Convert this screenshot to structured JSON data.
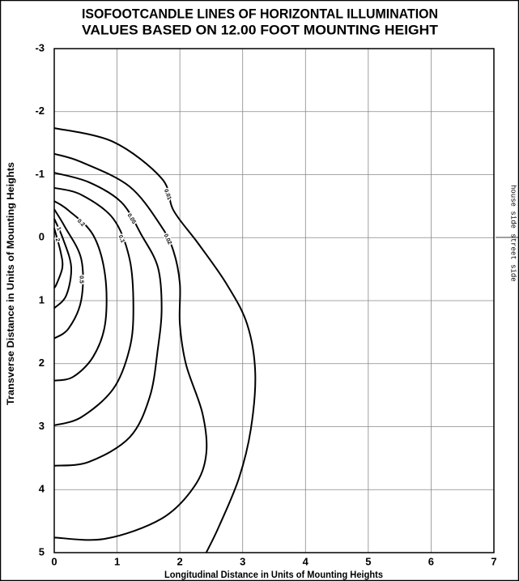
{
  "chart_data": {
    "type": "contour",
    "title": "ISOFOOTCANDLE LINES OF HORIZONTAL ILLUMINATION",
    "subtitle": "VALUES BASED ON 12.00 FOOT MOUNTING HEIGHT",
    "x_label": "Longitudinal Distance in Units of Mounting Heights",
    "y_label": "Transverse Distance in Units of Mounting Heights",
    "annotations": [
      "house side",
      "street side"
    ],
    "xlim": [
      0,
      7
    ],
    "xticks": [
      0,
      1,
      2,
      3,
      4,
      5,
      6,
      7
    ],
    "ylim": [
      -3,
      5
    ],
    "yticks": [
      -3,
      -2,
      -1,
      0,
      1,
      2,
      3,
      4,
      5
    ],
    "y_inverted": true,
    "grid": true,
    "color": "#000000",
    "series": [
      {
        "name": "0.01",
        "x": [
          0,
          0.94,
          1.71,
          1.9,
          2.29,
          2.74,
          3.07,
          3.2,
          3.13,
          2.94,
          2.62,
          2.42
        ],
        "y": [
          -1.74,
          -1.52,
          -0.94,
          -0.43,
          0.09,
          0.73,
          1.37,
          2.14,
          3.04,
          3.82,
          4.59,
          5
        ]
      },
      {
        "name": "0.02",
        "x": [
          0,
          0.43,
          1.2,
          1.71,
          1.9,
          2,
          2,
          2.1,
          2.36,
          2.42,
          2.23,
          1.71,
          0.81,
          0
        ],
        "y": [
          -1.33,
          -1.2,
          -0.81,
          -0.17,
          0.22,
          0.73,
          1.37,
          2.02,
          2.79,
          3.43,
          3.95,
          4.46,
          4.78,
          4.76
        ]
      },
      {
        "name": "0.05",
        "x": [
          0,
          0.55,
          1.07,
          1.39,
          1.65,
          1.71,
          1.65,
          1.52,
          1.2,
          0.55,
          0
        ],
        "y": [
          -1.03,
          -0.88,
          -0.56,
          -0.04,
          0.47,
          1.12,
          1.76,
          2.53,
          3.17,
          3.56,
          3.62
        ]
      },
      {
        "name": "0.1",
        "x": [
          0,
          0.43,
          0.94,
          1.2,
          1.26,
          1.2,
          0.94,
          0.43,
          0
        ],
        "y": [
          -0.79,
          -0.68,
          -0.3,
          0.34,
          1.12,
          1.76,
          2.4,
          2.85,
          2.98
        ]
      },
      {
        "name": "0.2",
        "x": [
          0,
          0.23,
          0.62,
          0.81,
          0.81,
          0.62,
          0.3,
          0
        ],
        "y": [
          -0.58,
          -0.43,
          -0.04,
          0.6,
          1.37,
          1.89,
          2.21,
          2.27
        ]
      },
      {
        "name": "0.5",
        "x": [
          0,
          0.17,
          0.43,
          0.43,
          0.23,
          0
        ],
        "y": [
          -0.45,
          -0.17,
          0.34,
          0.99,
          1.44,
          1.6
        ]
      },
      {
        "name": "1",
        "x": [
          0,
          0.14,
          0.27,
          0.19,
          0
        ],
        "y": [
          -0.3,
          0.02,
          0.47,
          0.92,
          1.12
        ]
      },
      {
        "name": "2",
        "x": [
          0,
          0.1,
          0.13,
          0.04,
          0
        ],
        "y": [
          -0.15,
          0.22,
          0.47,
          0.73,
          0.8
        ]
      }
    ]
  }
}
